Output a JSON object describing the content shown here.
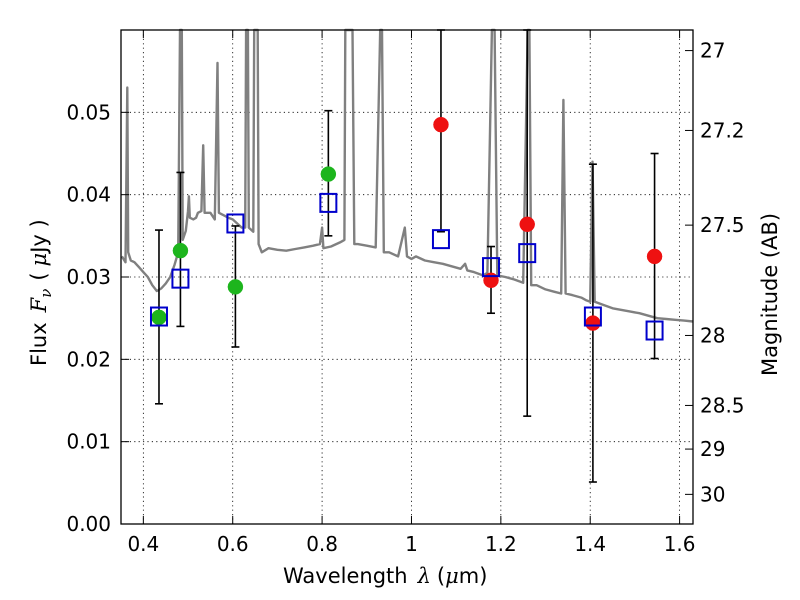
{
  "chart_data": {
    "type": "scatter",
    "xlabel_text": "Wavelength",
    "xlabel_symbol": "λ",
    "xlabel_unit_open": "(",
    "xlabel_unit_mu": "μ",
    "xlabel_unit_rest": "m)",
    "ylabel_text": "Flux",
    "ylabel_symbol": "F",
    "ylabel_sub": "ν",
    "ylabel_unit_open": "(",
    "ylabel_unit_mu": "μ",
    "ylabel_unit_rest": "Jy )",
    "y2label": "Magnitude (AB)",
    "xlim": [
      0.35,
      1.63
    ],
    "ylim": [
      0.0,
      0.06
    ],
    "grid": true,
    "x_ticks": [
      {
        "value": 0.4,
        "label": "0.4"
      },
      {
        "value": 0.6,
        "label": "0.6"
      },
      {
        "value": 0.8,
        "label": "0.8"
      },
      {
        "value": 1.0,
        "label": "1"
      },
      {
        "value": 1.2,
        "label": "1.2"
      },
      {
        "value": 1.4,
        "label": "1.4"
      },
      {
        "value": 1.6,
        "label": "1.6"
      }
    ],
    "y_ticks": [
      {
        "value": 0.0,
        "label": "0.00"
      },
      {
        "value": 0.01,
        "label": "0.01"
      },
      {
        "value": 0.02,
        "label": "0.02"
      },
      {
        "value": 0.03,
        "label": "0.03"
      },
      {
        "value": 0.04,
        "label": "0.04"
      },
      {
        "value": 0.05,
        "label": "0.05"
      }
    ],
    "y2_ticks": [
      {
        "label": "27",
        "flux": 0.0575
      },
      {
        "label": "27.2",
        "flux": 0.0478
      },
      {
        "label": "27.5",
        "flux": 0.0363
      },
      {
        "label": "28",
        "flux": 0.0229
      },
      {
        "label": "28.5",
        "flux": 0.0144
      },
      {
        "label": "29",
        "flux": 0.0091
      },
      {
        "label": "30",
        "flux": 0.0036
      }
    ],
    "colors": {
      "model": "#808080",
      "green": "#1db51d",
      "red": "#ee1111",
      "blue": "#0000cc",
      "error": "#000000"
    },
    "series": [
      {
        "name": "model_spectrum",
        "kind": "line",
        "points": [
          [
            0.352,
            0.0325
          ],
          [
            0.36,
            0.0318
          ],
          [
            0.364,
            0.053
          ],
          [
            0.366,
            0.033
          ],
          [
            0.372,
            0.032
          ],
          [
            0.38,
            0.0318
          ],
          [
            0.39,
            0.0312
          ],
          [
            0.4,
            0.0306
          ],
          [
            0.41,
            0.03
          ],
          [
            0.42,
            0.029
          ],
          [
            0.43,
            0.0283
          ],
          [
            0.44,
            0.0286
          ],
          [
            0.45,
            0.0292
          ],
          [
            0.46,
            0.03
          ],
          [
            0.47,
            0.0315
          ],
          [
            0.478,
            0.033
          ],
          [
            0.482,
            0.06
          ],
          [
            0.484,
            0.06
          ],
          [
            0.486,
            0.06
          ],
          [
            0.488,
            0.0345
          ],
          [
            0.495,
            0.0356
          ],
          [
            0.5,
            0.038
          ],
          [
            0.502,
            0.0398
          ],
          [
            0.504,
            0.0372
          ],
          [
            0.512,
            0.037
          ],
          [
            0.518,
            0.0372
          ],
          [
            0.522,
            0.0378
          ],
          [
            0.53,
            0.038
          ],
          [
            0.534,
            0.046
          ],
          [
            0.537,
            0.0378
          ],
          [
            0.55,
            0.0378
          ],
          [
            0.56,
            0.037
          ],
          [
            0.566,
            0.056
          ],
          [
            0.569,
            0.0378
          ],
          [
            0.58,
            0.0375
          ],
          [
            0.59,
            0.0372
          ],
          [
            0.6,
            0.037
          ],
          [
            0.61,
            0.0365
          ],
          [
            0.62,
            0.036
          ],
          [
            0.628,
            0.036
          ],
          [
            0.63,
            0.06
          ],
          [
            0.634,
            0.06
          ],
          [
            0.636,
            0.036
          ],
          [
            0.646,
            0.0355
          ],
          [
            0.648,
            0.06
          ],
          [
            0.651,
            0.06
          ],
          [
            0.653,
            0.06
          ],
          [
            0.656,
            0.06
          ],
          [
            0.658,
            0.034
          ],
          [
            0.665,
            0.033
          ],
          [
            0.68,
            0.0335
          ],
          [
            0.7,
            0.0333
          ],
          [
            0.72,
            0.0332
          ],
          [
            0.74,
            0.0334
          ],
          [
            0.76,
            0.0336
          ],
          [
            0.78,
            0.0338
          ],
          [
            0.795,
            0.034
          ],
          [
            0.8,
            0.036
          ],
          [
            0.803,
            0.0335
          ],
          [
            0.82,
            0.0337
          ],
          [
            0.84,
            0.0342
          ],
          [
            0.85,
            0.0345
          ],
          [
            0.852,
            0.06
          ],
          [
            0.856,
            0.06
          ],
          [
            0.86,
            0.06
          ],
          [
            0.864,
            0.06
          ],
          [
            0.868,
            0.06
          ],
          [
            0.872,
            0.034
          ],
          [
            0.88,
            0.034
          ],
          [
            0.9,
            0.0338
          ],
          [
            0.92,
            0.0336
          ],
          [
            0.93,
            0.06
          ],
          [
            0.934,
            0.06
          ],
          [
            0.938,
            0.033
          ],
          [
            0.95,
            0.033
          ],
          [
            0.97,
            0.0325
          ],
          [
            0.985,
            0.036
          ],
          [
            0.99,
            0.0325
          ],
          [
            1.0,
            0.0322
          ],
          [
            1.01,
            0.0325
          ],
          [
            1.03,
            0.032
          ],
          [
            1.05,
            0.0318
          ],
          [
            1.07,
            0.0316
          ],
          [
            1.09,
            0.0313
          ],
          [
            1.11,
            0.031
          ],
          [
            1.12,
            0.0316
          ],
          [
            1.125,
            0.0308
          ],
          [
            1.14,
            0.0306
          ],
          [
            1.16,
            0.0302
          ],
          [
            1.17,
            0.0305
          ],
          [
            1.18,
            0.06
          ],
          [
            1.186,
            0.06
          ],
          [
            1.192,
            0.0302
          ],
          [
            1.21,
            0.03
          ],
          [
            1.23,
            0.0297
          ],
          [
            1.25,
            0.0293
          ],
          [
            1.26,
            0.06
          ],
          [
            1.264,
            0.06
          ],
          [
            1.268,
            0.029
          ],
          [
            1.28,
            0.029
          ],
          [
            1.3,
            0.0285
          ],
          [
            1.32,
            0.0282
          ],
          [
            1.335,
            0.028
          ],
          [
            1.34,
            0.0515
          ],
          [
            1.345,
            0.028
          ],
          [
            1.36,
            0.0278
          ],
          [
            1.38,
            0.0275
          ],
          [
            1.39,
            0.0272
          ],
          [
            1.4,
            0.027
          ],
          [
            1.405,
            0.044
          ],
          [
            1.41,
            0.027
          ],
          [
            1.43,
            0.0266
          ],
          [
            1.45,
            0.0262
          ],
          [
            1.47,
            0.026
          ],
          [
            1.49,
            0.0258
          ],
          [
            1.51,
            0.0256
          ],
          [
            1.53,
            0.0253
          ],
          [
            1.55,
            0.025
          ],
          [
            1.57,
            0.0249
          ],
          [
            1.59,
            0.0248
          ],
          [
            1.61,
            0.0247
          ],
          [
            1.63,
            0.0246
          ]
        ]
      },
      {
        "name": "green_observed",
        "kind": "circle",
        "color_key": "green",
        "points": [
          {
            "x": 0.435,
            "y": 0.0251,
            "err": [
              0.0146,
              0.0357
            ]
          },
          {
            "x": 0.483,
            "y": 0.0332,
            "err": [
              0.024,
              0.0427
            ]
          },
          {
            "x": 0.606,
            "y": 0.0288,
            "err": [
              0.0215,
              0.0362
            ]
          },
          {
            "x": 0.814,
            "y": 0.0425,
            "err": [
              0.035,
              0.0502
            ]
          }
        ]
      },
      {
        "name": "red_observed",
        "kind": "circle",
        "color_key": "red",
        "points": [
          {
            "x": 1.066,
            "y": 0.0485,
            "err": [
              0.0355,
              0.06
            ]
          },
          {
            "x": 1.178,
            "y": 0.0296,
            "err": [
              0.0256,
              0.0337
            ]
          },
          {
            "x": 1.259,
            "y": 0.0364,
            "err": [
              0.0131,
              0.06
            ]
          },
          {
            "x": 1.406,
            "y": 0.0244,
            "err": [
              0.0051,
              0.0437
            ]
          },
          {
            "x": 1.544,
            "y": 0.0325,
            "err": [
              0.0201,
              0.045
            ]
          }
        ]
      },
      {
        "name": "model_photometry",
        "kind": "square",
        "color_key": "blue",
        "points": [
          {
            "x": 0.435,
            "y": 0.0252
          },
          {
            "x": 0.483,
            "y": 0.0298
          },
          {
            "x": 0.606,
            "y": 0.0365
          },
          {
            "x": 0.814,
            "y": 0.039
          },
          {
            "x": 1.066,
            "y": 0.0346
          },
          {
            "x": 1.178,
            "y": 0.0312
          },
          {
            "x": 1.259,
            "y": 0.0329
          },
          {
            "x": 1.406,
            "y": 0.0252
          },
          {
            "x": 1.544,
            "y": 0.0235
          }
        ]
      }
    ]
  }
}
